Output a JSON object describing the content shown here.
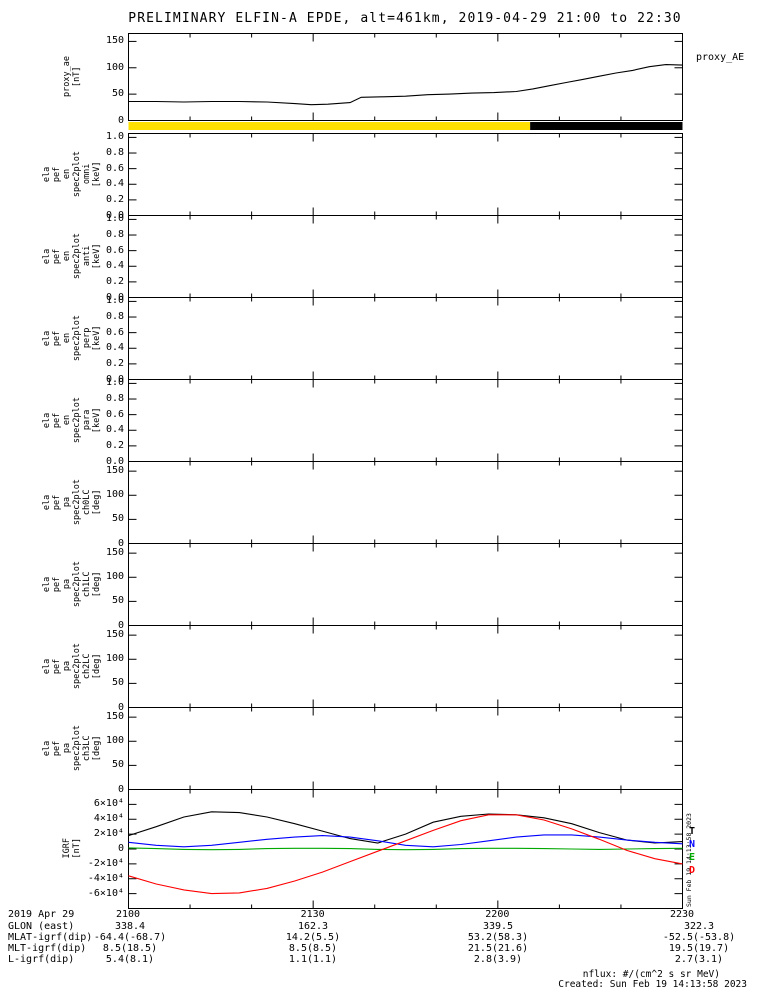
{
  "title": "PRELIMINARY ELFIN-A EPDE, alt=461km, 2019-04-29 21:00 to 22:30",
  "side_timestamp": "Sun Feb 19 14:13:58 2023",
  "footer": {
    "nflux": "nflux: #/(cm^2 s sr MeV)",
    "created": "Created: Sun Feb 19 14:13:58 2023"
  },
  "ephemeris": {
    "date": "2019 Apr 29",
    "rows": [
      {
        "label": "GLON (east)",
        "values": [
          "338.4",
          "162.3",
          "339.5",
          "322.3"
        ]
      },
      {
        "label": "MLAT-igrf(dip)",
        "values": [
          "-64.4(-68.7)",
          "14.2(5.5)",
          "53.2(58.3)",
          "-52.5(-53.8)"
        ]
      },
      {
        "label": "MLT-igrf(dip)",
        "values": [
          "8.5(18.5)",
          "8.5(8.5)",
          "21.5(21.6)",
          "19.5(19.7)"
        ]
      },
      {
        "label": "L-igrf(dip)",
        "values": [
          "5.4(8.1)",
          "1.1(1.1)",
          "2.8(3.9)",
          "2.7(3.1)"
        ]
      }
    ]
  },
  "chart_data": {
    "type": "line",
    "layout": "stacked-time-series-panels",
    "time_range": "2019-04-29 21:00 to 22:30",
    "xaxis": {
      "tick_labels": [
        "2100",
        "2130",
        "2200",
        "2230"
      ],
      "minor_ticks_per_interval": 3
    },
    "survey_bar": {
      "segments": [
        {
          "color": "#ffe000",
          "from": 0,
          "to": 0.725
        },
        {
          "color": "#000000",
          "from": 0.725,
          "to": 1
        }
      ]
    },
    "panels": [
      {
        "name": "proxy_ae",
        "type": "line",
        "ylabel_lines": [
          "proxy_ae",
          "[nT]"
        ],
        "ylim": [
          0,
          165
        ],
        "yticks": [
          {
            "v": 0,
            "label": "0"
          },
          {
            "v": 50,
            "label": "50"
          },
          {
            "v": 100,
            "label": "100"
          },
          {
            "v": 150,
            "label": "150"
          }
        ],
        "right_label": "proxy_AE",
        "series": [
          {
            "name": "proxy_AE",
            "color": "#000000",
            "x": [
              0,
              0.05,
              0.1,
              0.15,
              0.2,
              0.25,
              0.3,
              0.33,
              0.36,
              0.4,
              0.42,
              0.46,
              0.5,
              0.54,
              0.58,
              0.62,
              0.66,
              0.7,
              0.73,
              0.76,
              0.79,
              0.82,
              0.85,
              0.88,
              0.91,
              0.94,
              0.97,
              1.0
            ],
            "y": [
              36,
              36,
              35,
              36,
              36,
              35,
              32,
              30,
              31,
              34,
              44,
              45,
              46,
              49,
              50,
              52,
              53,
              55,
              60,
              66,
              72,
              78,
              84,
              90,
              95,
              102,
              106,
              105
            ]
          }
        ]
      },
      {
        "name": "ela_pef_en_spec2plot_omni",
        "type": "spectrogram",
        "ylabel_lines": [
          "ela",
          "pef",
          "en",
          "spec2plot",
          "omni",
          "[keV]"
        ],
        "ylim": [
          0,
          1.05
        ],
        "yticks": [
          {
            "v": 0,
            "label": "0.0"
          },
          {
            "v": 0.2,
            "label": "0.2"
          },
          {
            "v": 0.4,
            "label": "0.4"
          },
          {
            "v": 0.6,
            "label": "0.6"
          },
          {
            "v": 0.8,
            "label": "0.8"
          },
          {
            "v": 1.0,
            "label": "1.0"
          }
        ],
        "series": []
      },
      {
        "name": "ela_pef_en_spec2plot_anti",
        "type": "spectrogram",
        "ylabel_lines": [
          "ela",
          "pef",
          "en",
          "spec2plot",
          "anti",
          "[keV]"
        ],
        "ylim": [
          0,
          1.05
        ],
        "yticks": [
          {
            "v": 0,
            "label": "0.0"
          },
          {
            "v": 0.2,
            "label": "0.2"
          },
          {
            "v": 0.4,
            "label": "0.4"
          },
          {
            "v": 0.6,
            "label": "0.6"
          },
          {
            "v": 0.8,
            "label": "0.8"
          },
          {
            "v": 1.0,
            "label": "1.0"
          }
        ],
        "series": []
      },
      {
        "name": "ela_pef_en_spec2plot_perp",
        "type": "spectrogram",
        "ylabel_lines": [
          "ela",
          "pef",
          "en",
          "spec2plot",
          "perp",
          "[keV]"
        ],
        "ylim": [
          0,
          1.05
        ],
        "yticks": [
          {
            "v": 0,
            "label": "0.0"
          },
          {
            "v": 0.2,
            "label": "0.2"
          },
          {
            "v": 0.4,
            "label": "0.4"
          },
          {
            "v": 0.6,
            "label": "0.6"
          },
          {
            "v": 0.8,
            "label": "0.8"
          },
          {
            "v": 1.0,
            "label": "1.0"
          }
        ],
        "series": []
      },
      {
        "name": "ela_pef_en_spec2plot_para",
        "type": "spectrogram",
        "ylabel_lines": [
          "ela",
          "pef",
          "en",
          "spec2plot",
          "para",
          "[keV]"
        ],
        "ylim": [
          0,
          1.05
        ],
        "yticks": [
          {
            "v": 0,
            "label": "0.0"
          },
          {
            "v": 0.2,
            "label": "0.2"
          },
          {
            "v": 0.4,
            "label": "0.4"
          },
          {
            "v": 0.6,
            "label": "0.6"
          },
          {
            "v": 0.8,
            "label": "0.8"
          },
          {
            "v": 1.0,
            "label": "1.0"
          }
        ],
        "series": []
      },
      {
        "name": "ela_pef_pa_spec2plot_ch0LC",
        "type": "spectrogram",
        "ylabel_lines": [
          "ela",
          "pef",
          "pa",
          "spec2plot",
          "ch0LC",
          "[deg]"
        ],
        "ylim": [
          0,
          170
        ],
        "yticks": [
          {
            "v": 0,
            "label": "0"
          },
          {
            "v": 50,
            "label": "50"
          },
          {
            "v": 100,
            "label": "100"
          },
          {
            "v": 150,
            "label": "150"
          }
        ],
        "series": []
      },
      {
        "name": "ela_pef_pa_spec2plot_ch1LC",
        "type": "spectrogram",
        "ylabel_lines": [
          "ela",
          "pef",
          "pa",
          "spec2plot",
          "ch1LC",
          "[deg]"
        ],
        "ylim": [
          0,
          170
        ],
        "yticks": [
          {
            "v": 0,
            "label": "0"
          },
          {
            "v": 50,
            "label": "50"
          },
          {
            "v": 100,
            "label": "100"
          },
          {
            "v": 150,
            "label": "150"
          }
        ],
        "series": []
      },
      {
        "name": "ela_pef_pa_spec2plot_ch2LC",
        "type": "spectrogram",
        "ylabel_lines": [
          "ela",
          "pef",
          "pa",
          "spec2plot",
          "ch2LC",
          "[deg]"
        ],
        "ylim": [
          0,
          170
        ],
        "yticks": [
          {
            "v": 0,
            "label": "0"
          },
          {
            "v": 50,
            "label": "50"
          },
          {
            "v": 100,
            "label": "100"
          },
          {
            "v": 150,
            "label": "150"
          }
        ],
        "series": []
      },
      {
        "name": "ela_pef_pa_spec2plot_ch3LC",
        "type": "spectrogram",
        "ylabel_lines": [
          "ela",
          "pef",
          "pa",
          "spec2plot",
          "ch3LC",
          "[deg]"
        ],
        "ylim": [
          0,
          170
        ],
        "yticks": [
          {
            "v": 0,
            "label": "0"
          },
          {
            "v": 50,
            "label": "50"
          },
          {
            "v": 100,
            "label": "100"
          },
          {
            "v": 150,
            "label": "150"
          }
        ],
        "series": []
      },
      {
        "name": "igrf",
        "type": "line",
        "ylabel_lines": [
          "IGRF",
          "[nT]"
        ],
        "ylim": [
          -80000,
          80000
        ],
        "yticks": [
          {
            "v": 60000,
            "label": "6×10⁴"
          },
          {
            "v": 40000,
            "label": "4×10⁴"
          },
          {
            "v": 20000,
            "label": "2×10⁴"
          },
          {
            "v": 0,
            "label": "0"
          },
          {
            "v": -20000,
            "label": "-2×10⁴"
          },
          {
            "v": -40000,
            "label": "-4×10⁴"
          },
          {
            "v": -60000,
            "label": "-6×10⁴"
          }
        ],
        "legend": [
          {
            "label": "T",
            "color": "#000000"
          },
          {
            "label": "N",
            "color": "#0000ff"
          },
          {
            "label": "E",
            "color": "#00a800"
          },
          {
            "label": "D",
            "color": "#ff0000"
          }
        ],
        "series": [
          {
            "name": "T",
            "color": "#000000",
            "x": [
              0,
              0.05,
              0.1,
              0.15,
              0.2,
              0.25,
              0.3,
              0.35,
              0.4,
              0.45,
              0.5,
              0.55,
              0.6,
              0.65,
              0.7,
              0.75,
              0.8,
              0.85,
              0.9,
              0.95,
              1.0
            ],
            "y": [
              18000,
              30000,
              43000,
              50000,
              49000,
              43000,
              34000,
              24000,
              14000,
              8000,
              20000,
              36000,
              44000,
              47000,
              46000,
              42000,
              34000,
              22000,
              12000,
              8000,
              10000
            ]
          },
          {
            "name": "N",
            "color": "#0000ff",
            "x": [
              0,
              0.05,
              0.1,
              0.15,
              0.2,
              0.25,
              0.3,
              0.35,
              0.4,
              0.45,
              0.5,
              0.55,
              0.6,
              0.65,
              0.7,
              0.75,
              0.8,
              0.85,
              0.9,
              0.95,
              1.0
            ],
            "y": [
              9000,
              5000,
              3000,
              5000,
              9000,
              13000,
              16000,
              18000,
              16000,
              11000,
              5000,
              3000,
              6000,
              11000,
              16000,
              19000,
              19000,
              16000,
              12000,
              9000,
              7000
            ]
          },
          {
            "name": "E",
            "color": "#00a800",
            "x": [
              0,
              0.05,
              0.1,
              0.15,
              0.2,
              0.25,
              0.3,
              0.35,
              0.4,
              0.45,
              0.5,
              0.55,
              0.6,
              0.65,
              0.7,
              0.75,
              0.8,
              0.85,
              0.9,
              0.95,
              1.0
            ],
            "y": [
              1500,
              500,
              -500,
              -1000,
              -500,
              500,
              1000,
              1000,
              500,
              -500,
              -1000,
              -500,
              500,
              1000,
              1000,
              500,
              0,
              -500,
              0,
              500,
              1000
            ]
          },
          {
            "name": "D",
            "color": "#ff0000",
            "x": [
              0,
              0.05,
              0.1,
              0.15,
              0.2,
              0.25,
              0.3,
              0.35,
              0.4,
              0.45,
              0.5,
              0.55,
              0.6,
              0.65,
              0.7,
              0.75,
              0.8,
              0.85,
              0.9,
              0.95,
              1.0
            ],
            "y": [
              -36000,
              -47000,
              -55000,
              -60000,
              -59000,
              -53000,
              -43000,
              -31000,
              -17000,
              -3000,
              11000,
              25000,
              38000,
              46000,
              46000,
              39000,
              27000,
              13000,
              -2000,
              -13000,
              -20000
            ]
          }
        ]
      }
    ]
  }
}
